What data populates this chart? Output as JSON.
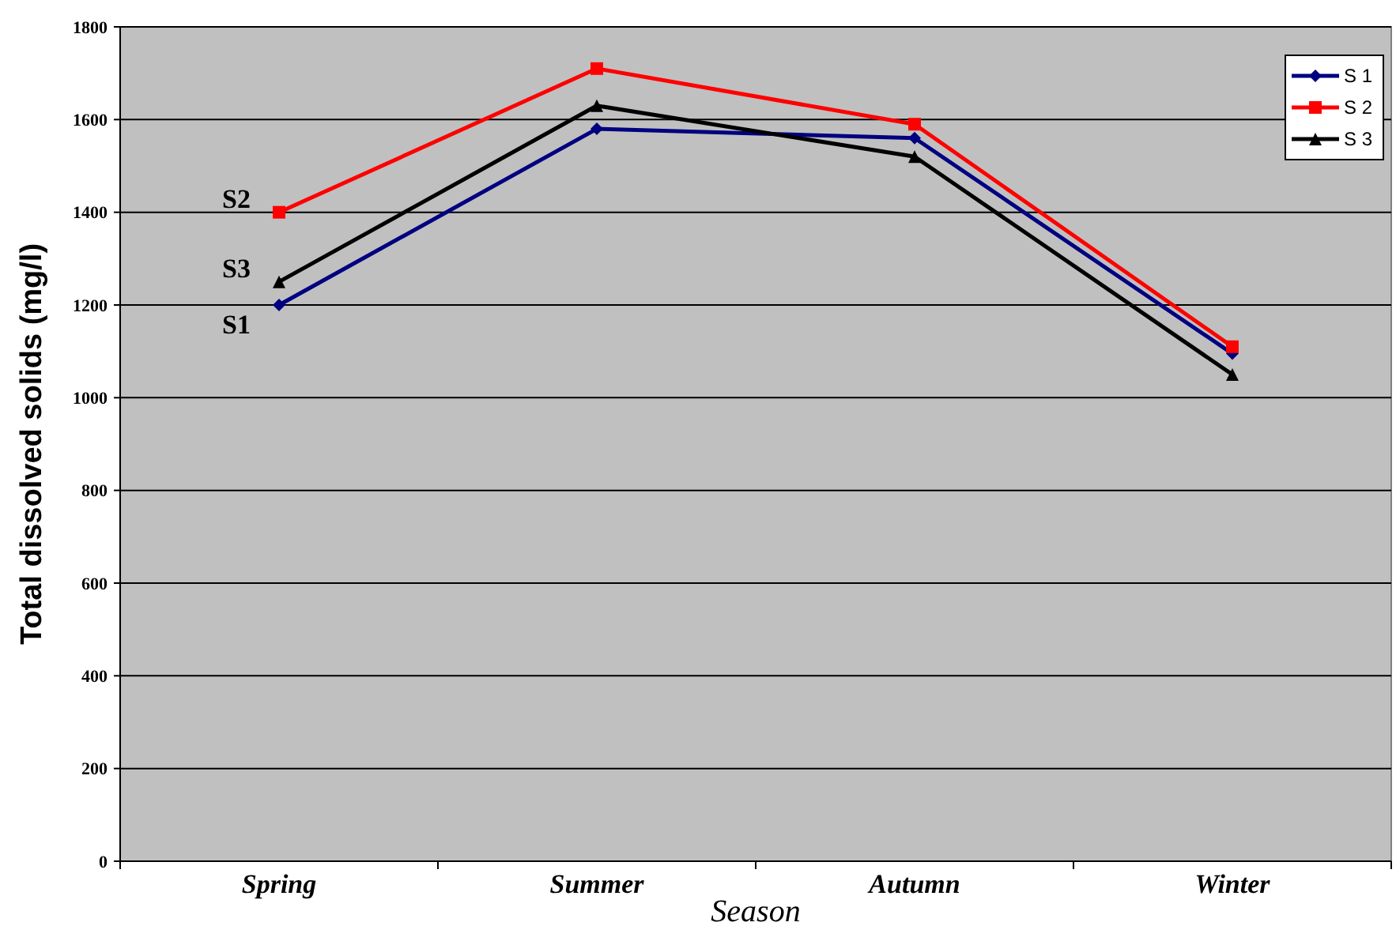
{
  "chart_data": {
    "type": "line",
    "xlabel": "Season",
    "ylabel": "Total dissolved solids (mg/l)",
    "categories": [
      "Spring",
      "Summer",
      "Autumn",
      "Winter"
    ],
    "series": [
      {
        "name": "S 1",
        "color": "#000080",
        "marker": "diamond",
        "values": [
          1200,
          1580,
          1560,
          1095
        ]
      },
      {
        "name": "S 2",
        "color": "#ff0000",
        "marker": "square",
        "values": [
          1400,
          1710,
          1590,
          1110
        ]
      },
      {
        "name": "S 3",
        "color": "#000000",
        "marker": "triangle",
        "values": [
          1250,
          1630,
          1520,
          1050
        ]
      }
    ],
    "ylim": [
      0,
      1800
    ],
    "yticks": [
      0,
      200,
      400,
      600,
      800,
      1000,
      1200,
      1400,
      1600,
      1800
    ],
    "grid": "y",
    "legend": "top right",
    "annotations": [
      {
        "text": "S2",
        "x": "Spring",
        "y": 1400
      },
      {
        "text": "S3",
        "x": "Spring",
        "y": 1250
      },
      {
        "text": "S1",
        "x": "Spring",
        "y": 1200
      }
    ]
  }
}
